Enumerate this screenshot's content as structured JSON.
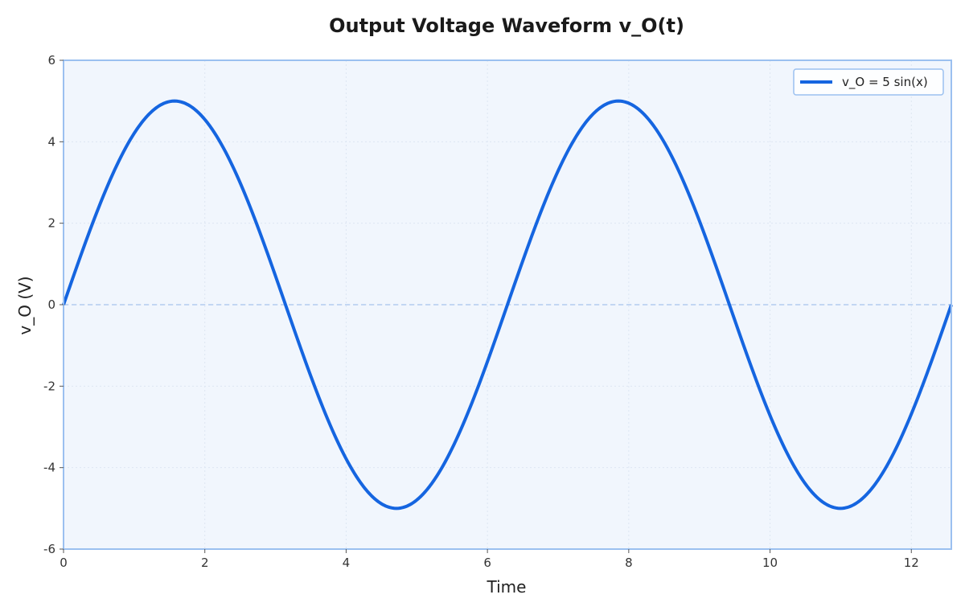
{
  "chart_data": {
    "type": "line",
    "title": "Output Voltage Waveform v_O(t)",
    "xlabel": "Time",
    "ylabel": "v_O (V)",
    "xlim": [
      0,
      12.566
    ],
    "ylim": [
      -6,
      6
    ],
    "x_ticks": [
      0,
      2,
      4,
      6,
      8,
      10,
      12
    ],
    "y_ticks": [
      -6,
      -4,
      -2,
      0,
      2,
      4,
      6
    ],
    "x_tick_labels": [
      "0",
      "2",
      "4",
      "6",
      "8",
      "10",
      "12"
    ],
    "y_tick_labels": [
      "-6",
      "-4",
      "-2",
      "0",
      "2",
      "4",
      "6"
    ],
    "grid": true,
    "zero_line": true,
    "legend_position": "top-right",
    "series": [
      {
        "name": "v_O = 5 sin(x)",
        "function": "5*sin(x)",
        "amplitude": 5,
        "color": "#1565e0",
        "x": [
          0,
          0.5,
          1.0,
          1.5708,
          2.0,
          2.5,
          3.1416,
          3.5,
          4.0,
          4.7124,
          5.0,
          5.5,
          6.2832,
          6.5,
          7.0,
          7.854,
          8.5,
          9.0,
          9.4248,
          10.0,
          10.5,
          10.9956,
          11.5,
          12.0,
          12.566
        ],
        "y": [
          0,
          2.4,
          4.21,
          5.0,
          4.55,
          2.99,
          0,
          -1.75,
          -3.78,
          -5.0,
          -4.79,
          -3.54,
          0,
          1.08,
          3.28,
          5.0,
          3.99,
          2.06,
          0,
          -2.72,
          -4.4,
          -5.0,
          -4.37,
          -2.68,
          0
        ]
      }
    ],
    "colors": {
      "plot_bg": "#f1f6fd",
      "frame": "#9bc0f0",
      "grid": "#dde6f2",
      "zero_line": "#c2d6f3",
      "line": "#1565e0"
    }
  }
}
